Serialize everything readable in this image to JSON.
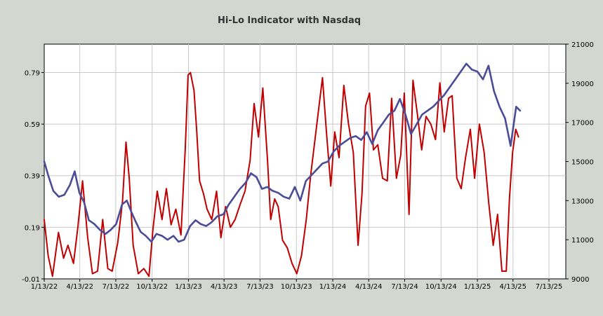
{
  "chart_data": {
    "type": "line",
    "title": "Hi-Lo Indicator with Nasdaq",
    "x_ticks": [
      "1/13/22",
      "4/13/22",
      "7/13/22",
      "10/13/22",
      "1/13/23",
      "4/13/23",
      "7/13/23",
      "10/13/23",
      "1/13/24",
      "4/13/24",
      "7/13/24",
      "10/13/24",
      "1/13/25",
      "4/13/25",
      "7/13/25"
    ],
    "x_range": [
      "1/13/22",
      "7/13/25"
    ],
    "y_left": {
      "ticks": [
        "-0.01",
        "0.19",
        "0.39",
        "0.59",
        "0.79"
      ],
      "range": [
        -0.01,
        0.9
      ]
    },
    "y_right": {
      "ticks": [
        "9000",
        "11000",
        "13000",
        "15000",
        "17000",
        "19000",
        "21000"
      ],
      "range": [
        9000,
        21000
      ]
    },
    "grid": true,
    "legend": "none",
    "series": [
      {
        "axis": "left",
        "color": "#c00000",
        "x": [
          "1/13/22",
          "1/23/22",
          "2/3/22",
          "2/18/22",
          "3/3/22",
          "3/14/22",
          "3/28/22",
          "4/8/22",
          "4/20/22",
          "5/3/22",
          "5/15/22",
          "5/28/22",
          "6/10/22",
          "6/23/22",
          "7/4/22",
          "7/18/22",
          "7/30/22",
          "8/8/22",
          "8/16/22",
          "8/26/22",
          "9/8/22",
          "9/22/22",
          "10/5/22",
          "10/15/22",
          "10/26/22",
          "11/7/22",
          "11/18/22",
          "11/30/22",
          "12/12/22",
          "12/25/22",
          "1/5/23",
          "1/12/23",
          "1/18/23",
          "1/27/23",
          "2/3/23",
          "2/10/23",
          "2/20/23",
          "3/1/23",
          "3/13/23",
          "3/25/23",
          "4/5/23",
          "4/17/23",
          "4/29/23",
          "5/11/23",
          "5/24/23",
          "6/5/23",
          "6/18/23",
          "6/28/23",
          "7/9/23",
          "7/20/23",
          "8/1/23",
          "8/9/23",
          "8/19/23",
          "8/28/23",
          "9/8/23",
          "9/20/23",
          "10/2/23",
          "10/14/23",
          "10/26/23",
          "11/7/23",
          "11/18/23",
          "11/29/23",
          "12/10/23",
          "12/18/23",
          "12/28/23",
          "1/8/24",
          "1/18/24",
          "1/29/24",
          "2/10/24",
          "2/22/24",
          "3/5/24",
          "3/17/24",
          "3/27/24",
          "4/5/24",
          "4/15/24",
          "4/25/24",
          "5/6/24",
          "5/18/24",
          "5/30/24",
          "6/10/24",
          "6/22/24",
          "7/3/24",
          "7/12/24",
          "7/24/24",
          "8/3/24",
          "8/14/24",
          "8/25/24",
          "9/5/24",
          "9/17/24",
          "9/29/24",
          "10/10/24",
          "10/21/24",
          "11/1/24",
          "11/10/24",
          "11/22/24",
          "12/3/24",
          "12/14/24",
          "12/26/24",
          "1/6/25",
          "1/18/25",
          "1/30/25",
          "2/11/25",
          "2/22/25",
          "3/5/25",
          "3/16/25",
          "3/27/25",
          "4/4/25",
          "4/12/25",
          "4/20/25",
          "4/27/25"
        ],
        "values": [
          0.22,
          0.08,
          0.0,
          0.17,
          0.07,
          0.12,
          0.05,
          0.19,
          0.37,
          0.15,
          0.01,
          0.02,
          0.22,
          0.03,
          0.02,
          0.13,
          0.29,
          0.52,
          0.38,
          0.12,
          0.01,
          0.03,
          0.0,
          0.18,
          0.33,
          0.22,
          0.34,
          0.2,
          0.26,
          0.16,
          0.5,
          0.78,
          0.79,
          0.72,
          0.56,
          0.37,
          0.32,
          0.26,
          0.22,
          0.33,
          0.15,
          0.27,
          0.19,
          0.22,
          0.28,
          0.33,
          0.45,
          0.67,
          0.54,
          0.73,
          0.45,
          0.22,
          0.3,
          0.27,
          0.14,
          0.11,
          0.05,
          0.01,
          0.08,
          0.22,
          0.39,
          0.53,
          0.67,
          0.77,
          0.56,
          0.35,
          0.56,
          0.46,
          0.74,
          0.59,
          0.48,
          0.12,
          0.32,
          0.66,
          0.71,
          0.49,
          0.51,
          0.38,
          0.37,
          0.69,
          0.38,
          0.47,
          0.71,
          0.24,
          0.76,
          0.63,
          0.49,
          0.62,
          0.59,
          0.53,
          0.75,
          0.56,
          0.69,
          0.7,
          0.38,
          0.34,
          0.46,
          0.57,
          0.38,
          0.59,
          0.48,
          0.28,
          0.12,
          0.24,
          0.02,
          0.02,
          0.3,
          0.48,
          0.57,
          0.54
        ]
      },
      {
        "axis": "right",
        "color": "#4b4b96",
        "x": [
          "1/13/22",
          "1/23/22",
          "2/5/22",
          "2/19/22",
          "3/5/22",
          "3/19/22",
          "3/31/22",
          "4/12/22",
          "4/24/22",
          "5/6/22",
          "5/20/22",
          "6/3/22",
          "6/17/22",
          "6/30/22",
          "7/14/22",
          "7/29/22",
          "8/10/22",
          "8/22/22",
          "9/2/22",
          "9/14/22",
          "9/27/22",
          "10/11/22",
          "10/24/22",
          "11/7/22",
          "11/21/22",
          "12/6/22",
          "12/19/22",
          "1/2/23",
          "1/17/23",
          "1/31/23",
          "2/13/23",
          "2/27/23",
          "3/13/23",
          "3/27/23",
          "4/11/23",
          "4/25/23",
          "5/9/23",
          "5/23/23",
          "6/6/23",
          "6/20/23",
          "7/4/23",
          "7/18/23",
          "7/31/23",
          "8/14/23",
          "8/28/23",
          "9/11/23",
          "9/25/23",
          "10/9/23",
          "10/23/23",
          "11/6/23",
          "11/20/23",
          "12/4/23",
          "12/18/23",
          "1/1/24",
          "1/15/24",
          "1/29/24",
          "2/12/24",
          "2/26/24",
          "3/11/24",
          "3/25/24",
          "4/8/24",
          "4/22/24",
          "5/6/24",
          "5/20/24",
          "6/3/24",
          "6/17/24",
          "7/1/24",
          "7/15/24",
          "7/29/24",
          "8/12/24",
          "8/26/24",
          "9/9/24",
          "9/23/24",
          "10/7/24",
          "10/21/24",
          "11/4/24",
          "11/18/24",
          "12/2/24",
          "12/16/24",
          "12/30/24",
          "1/13/25",
          "1/27/25",
          "2/10/25",
          "2/24/25",
          "3/10/25",
          "3/24/25",
          "4/7/25",
          "4/21/25",
          "5/1/25"
        ],
        "values": [
          15000,
          14300,
          13500,
          13200,
          13300,
          13800,
          14500,
          13400,
          12900,
          12000,
          11800,
          11500,
          11300,
          11500,
          11800,
          12800,
          13000,
          12400,
          11900,
          11400,
          11200,
          10900,
          11300,
          11200,
          11000,
          11200,
          10900,
          11000,
          11700,
          12000,
          11800,
          11700,
          11900,
          12200,
          12300,
          12800,
          13200,
          13600,
          13900,
          14400,
          14200,
          13600,
          13700,
          13500,
          13400,
          13200,
          13100,
          13700,
          13000,
          14000,
          14300,
          14600,
          14900,
          15000,
          15500,
          15800,
          16000,
          16200,
          16300,
          16100,
          16500,
          15900,
          16600,
          17000,
          17400,
          17600,
          18200,
          17400,
          16400,
          16900,
          17400,
          17600,
          17800,
          18100,
          18400,
          18800,
          19200,
          19600,
          20000,
          19700,
          19600,
          19200,
          19900,
          18600,
          17800,
          17200,
          15800,
          17800,
          17600
        ]
      }
    ]
  }
}
